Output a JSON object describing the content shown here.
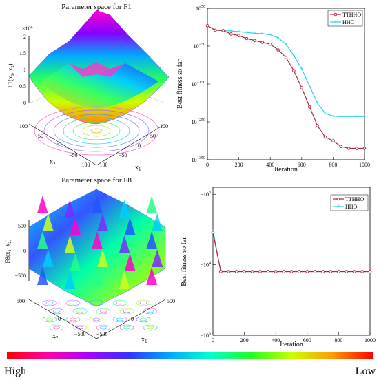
{
  "colors": {
    "tthho": "#b0253f",
    "hho": "#22d3e6",
    "frame": "#000000",
    "colorbar": [
      "#ff0000",
      "#ff00aa",
      "#aa00ff",
      "#3333ff",
      "#00aaff",
      "#00ffcc",
      "#22ff22",
      "#ccff00",
      "#ff9900",
      "#ff0000"
    ]
  },
  "chart_data": [
    {
      "type": "surface",
      "title": "Parameter space for F1",
      "zlabel": "F1(x1, x2)",
      "xlabel": "x1",
      "ylabel": "x2",
      "zlim": [
        0,
        20000
      ],
      "z_ticks": [
        "0",
        "0.5",
        "1",
        "1.5",
        "2"
      ],
      "z_multiplier": "×10^4",
      "x_ticks": [
        "−100",
        "−50",
        "0",
        "50",
        "100"
      ],
      "y_ticks": [
        "100",
        "50",
        "0",
        "−50",
        "−100"
      ]
    },
    {
      "type": "line",
      "xlabel": "Iteration",
      "ylabel": "Best fitness so far",
      "y_scale": "log",
      "y_tick_exponents": [
        50,
        -50,
        -150,
        -250,
        -350
      ],
      "x_ticks": [
        0,
        200,
        400,
        600,
        800,
        1000
      ],
      "xlim": [
        0,
        1000
      ],
      "legend_position": "top-right",
      "x": [
        0,
        50,
        100,
        150,
        200,
        250,
        300,
        350,
        400,
        450,
        500,
        550,
        600,
        650,
        700,
        750,
        800,
        850,
        900,
        950,
        1000
      ],
      "series": [
        {
          "name": "TTHHO",
          "log10_values": [
            4,
            -8,
            -9,
            -18,
            -22,
            -30,
            -35,
            -40,
            -45,
            -60,
            -80,
            -115,
            -160,
            -210,
            -260,
            -290,
            -300,
            -315,
            -320,
            -320,
            -320
          ]
        },
        {
          "name": "HHO",
          "log10_values": [
            4,
            -8,
            -9,
            -10,
            -12,
            -14,
            -16,
            -17,
            -20,
            -28,
            -45,
            -75,
            -110,
            -155,
            -200,
            -228,
            -235,
            -236,
            -236,
            -236,
            -236
          ]
        }
      ]
    },
    {
      "type": "surface",
      "title": "Parameter space for F8",
      "zlabel": "F8(x1, x2)",
      "xlabel": "x1",
      "ylabel": "x2",
      "z_ticks": [
        "500",
        "0",
        "−500"
      ],
      "x_ticks": [
        "−500",
        "0",
        "500"
      ],
      "y_ticks": [
        "500",
        "0",
        "−500"
      ]
    },
    {
      "type": "line",
      "xlabel": "Iteration",
      "ylabel": "Best fitness so far",
      "y_scale": "log",
      "y_tick_labels": [
        "−10^3",
        "−10^4",
        "−10^5"
      ],
      "x_ticks": [
        0,
        200,
        400,
        600,
        800,
        1000
      ],
      "xlim": [
        0,
        1000
      ],
      "legend_position": "top-right",
      "x": [
        0,
        50,
        100,
        150,
        200,
        250,
        300,
        350,
        400,
        450,
        500,
        550,
        600,
        650,
        700,
        750,
        800,
        850,
        900,
        950,
        1000
      ],
      "series": [
        {
          "name": "TTHHO",
          "values": [
            -3500,
            -12500,
            -12500,
            -12500,
            -12500,
            -12500,
            -12500,
            -12500,
            -12500,
            -12500,
            -12500,
            -12500,
            -12500,
            -12500,
            -12500,
            -12500,
            -12500,
            -12500,
            -12500,
            -12500,
            -12500
          ]
        },
        {
          "name": "HHO",
          "values": [
            -3200,
            -12500,
            -12500,
            -12500,
            -12500,
            -12500,
            -12500,
            -12500,
            -12500,
            -12500,
            -12500,
            -12500,
            -12500,
            -12500,
            -12500,
            -12500,
            -12500,
            -12500,
            -12500,
            -12500,
            -12500
          ]
        }
      ]
    }
  ],
  "colorbar_labels": {
    "high": "High",
    "low": "Low"
  }
}
